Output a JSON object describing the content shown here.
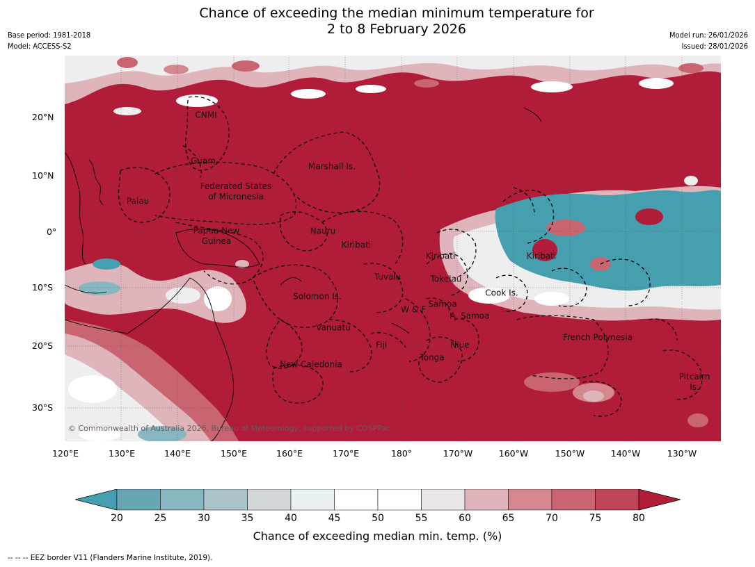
{
  "title_line1": "Chance of exceeding the median minimum temperature for",
  "title_line2": "2 to 8 February 2026",
  "meta_left": [
    "Base period: 1981-2018",
    "Model: ACCESS-S2"
  ],
  "meta_right": [
    "Model run: 26/01/2026",
    "Issued: 28/01/2026"
  ],
  "lat_labels": [
    "20°N",
    "10°N",
    "0°",
    "10°S",
    "20°S",
    "30°S"
  ],
  "lon_labels": [
    "120°E",
    "130°E",
    "140°E",
    "150°E",
    "160°E",
    "170°E",
    "180°",
    "170°W",
    "160°W",
    "150°W",
    "140°W",
    "130°W"
  ],
  "regions": {
    "cnmi": "CNMI",
    "guam": "Guam",
    "marshall": "Marshall Is.",
    "fsm_line1": "Federated States",
    "fsm_line2": "of Micronesia",
    "palau": "Palau",
    "png_line1": "Papua New",
    "png_line2": "Guinea",
    "nauru": "Nauru",
    "kiribati_west": "Kiribati",
    "kiribati_central": "Kiribati",
    "kiribati_east": "Kiribati",
    "tuvalu": "Tuvalu",
    "tokelau": "Tokelau",
    "cook": "Cook Is.",
    "solomon": "Solomon Is.",
    "wf": "W & F",
    "samoa": "Samoa",
    "am_samoa": "A. Samoa",
    "vanuatu": "Vanuatu",
    "fiji": "Fiji",
    "niue": "Niue",
    "tonga": "Tonga",
    "new_caledonia": "New Caledonia",
    "french_polynesia": "French Polynesia",
    "pitcairn_line1": "Pitcairn",
    "pitcairn_line2": "Is."
  },
  "copyright": "© Commonwealth of Australia 2026, Bureau of Meteorology, supported by COSPPac",
  "colorbar": {
    "ticks": [
      "20",
      "25",
      "30",
      "35",
      "40",
      "45",
      "50",
      "55",
      "60",
      "65",
      "70",
      "75",
      "80"
    ],
    "colors": {
      "under": "#459fae",
      "bins": [
        "#68a6b4",
        "#89b7c1",
        "#abc4ca",
        "#d2d8da",
        "#e9f0f1",
        "#ffffff",
        "#ffffff",
        "#ebe6e7",
        "#dfb5bb",
        "#d4878f",
        "#c86571",
        "#bf4557"
      ],
      "over": "#b11c39"
    }
  },
  "colorbar_label": "Chance of exceeding median min. temp. (%)",
  "footnote": "-- -- -- EEZ border V11 (Flanders Marine Institute, 2019).",
  "map_colors": {
    "high": "#b11c39",
    "mid_high": "#c86571",
    "mid": "#dfb5bb",
    "neutral": "#eeeeee",
    "low": "#459fae"
  }
}
